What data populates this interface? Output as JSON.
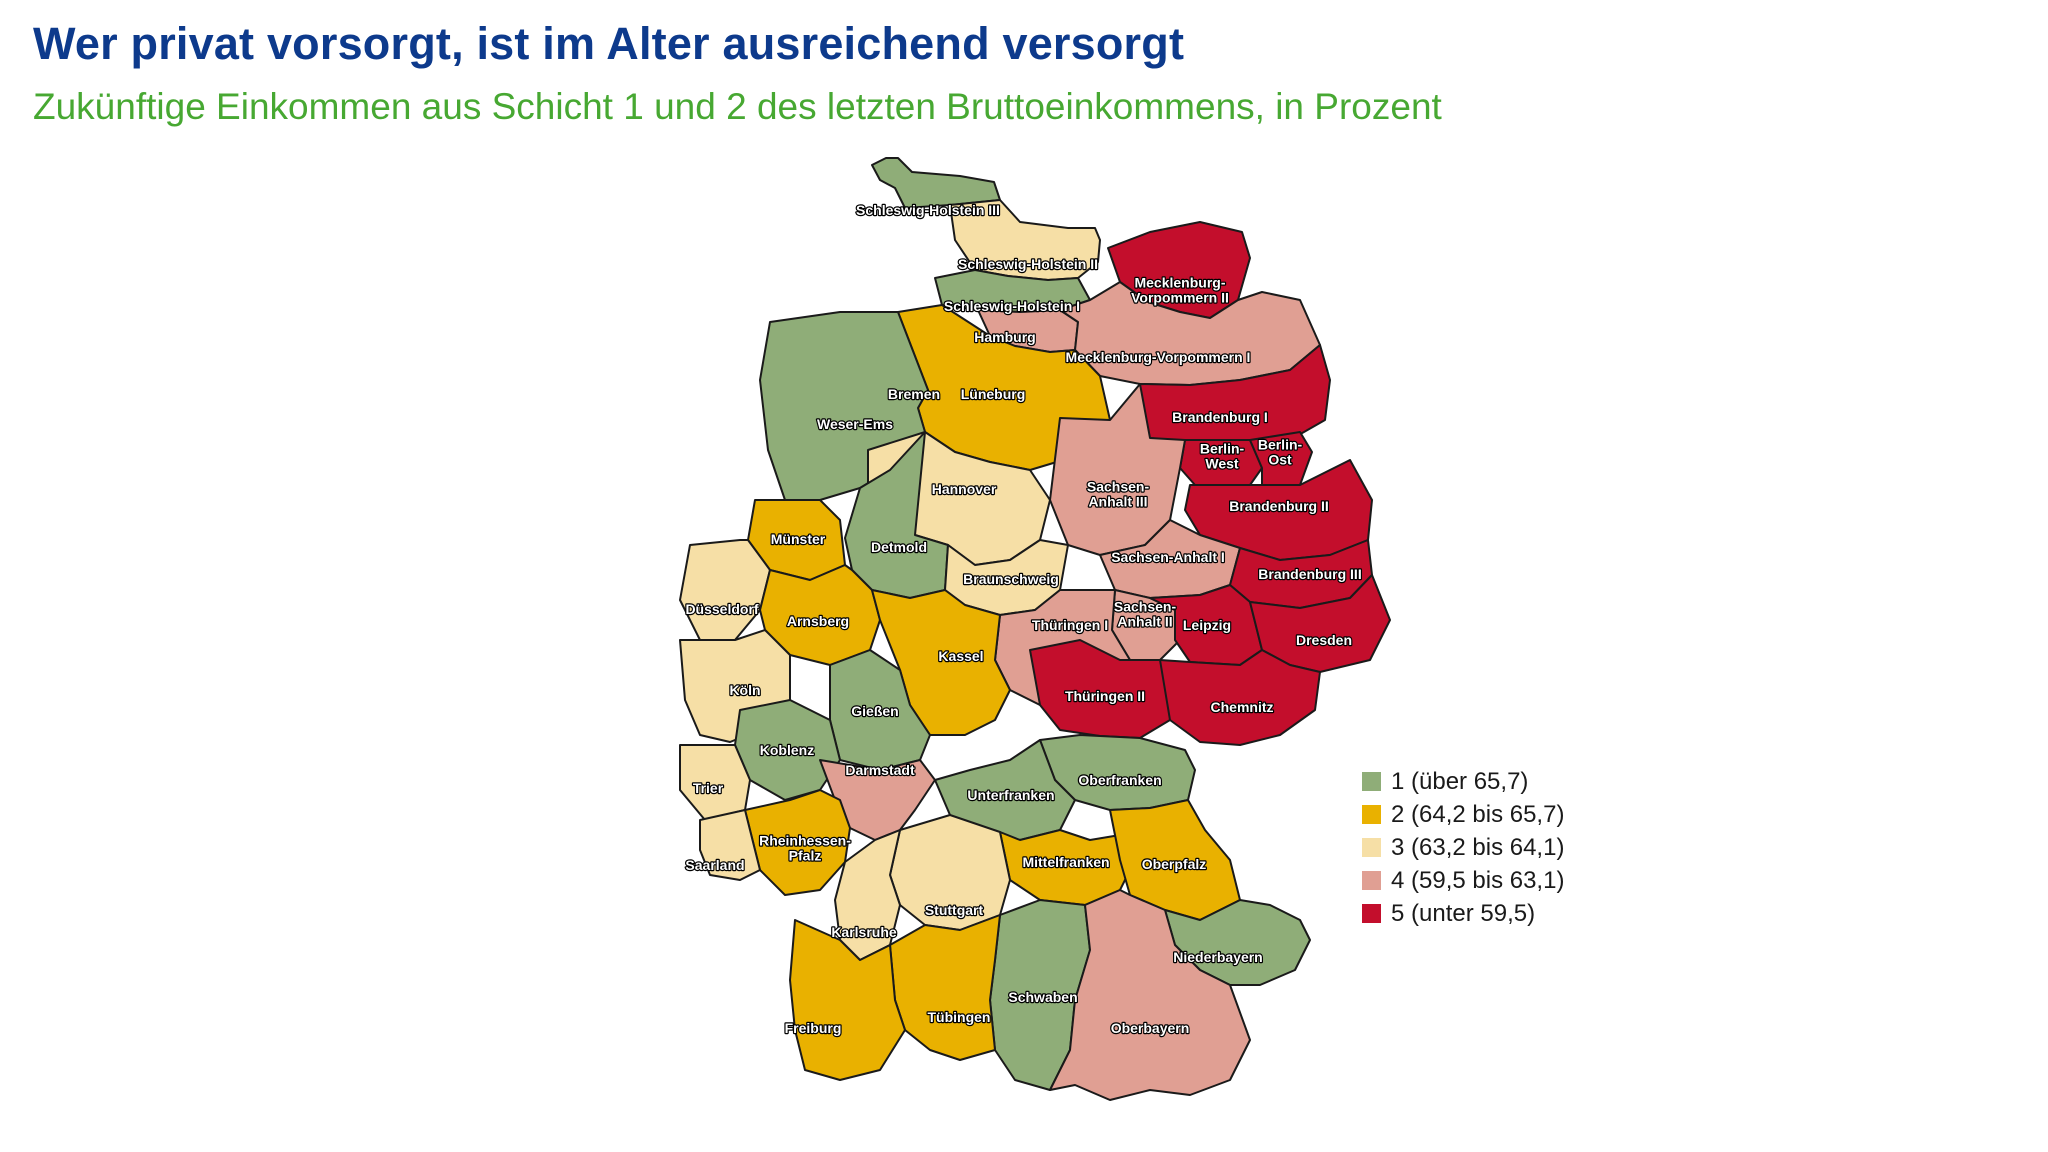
{
  "title": "Wer privat vorsorgt, ist im Alter ausreichend versorgt",
  "subtitle": "Zukünftige Einkommen aus Schicht 1 und 2 des letzten Bruttoeinkommens, in Prozent",
  "legend": [
    {
      "label": "1 (über 65,7)",
      "color": "#8fad78"
    },
    {
      "label": "2 (64,2 bis 65,7)",
      "color": "#e9b100"
    },
    {
      "label": "3 (63,2 bis 64,1)",
      "color": "#f6dfa6"
    },
    {
      "label": "4 (59,5 bis 63,1)",
      "color": "#e09f93"
    },
    {
      "label": "5 (unter 59,5)",
      "color": "#c30e2c"
    }
  ],
  "regions": [
    {
      "lines": [
        "Schleswig-Holstein III"
      ],
      "class": 1
    },
    {
      "lines": [
        "Schleswig-Holstein II"
      ],
      "class": 3
    },
    {
      "lines": [
        "Schleswig-Holstein I"
      ],
      "class": 1
    },
    {
      "lines": [
        "Hamburg"
      ],
      "class": 4
    },
    {
      "lines": [
        "Mecklenburg-",
        "Vorpommern II"
      ],
      "class": 5
    },
    {
      "lines": [
        "Mecklenburg-Vorpommern I"
      ],
      "class": 4
    },
    {
      "lines": [
        "Bremen"
      ],
      "class": 4
    },
    {
      "lines": [
        "Lüneburg"
      ],
      "class": 2
    },
    {
      "lines": [
        "Weser-Ems"
      ],
      "class": 1
    },
    {
      "lines": [
        "Brandenburg I"
      ],
      "class": 5
    },
    {
      "lines": [
        "Berlin-",
        "West"
      ],
      "class": 5
    },
    {
      "lines": [
        "Berlin-",
        "Ost"
      ],
      "class": 5
    },
    {
      "lines": [
        "Hannover"
      ],
      "class": 3
    },
    {
      "lines": [
        "Sachsen-",
        "Anhalt III"
      ],
      "class": 4
    },
    {
      "lines": [
        "Brandenburg II"
      ],
      "class": 5
    },
    {
      "lines": [
        "Münster"
      ],
      "class": 2
    },
    {
      "lines": [
        "Detmold"
      ],
      "class": 1
    },
    {
      "lines": [
        "Sachsen-Anhalt I"
      ],
      "class": 4
    },
    {
      "lines": [
        "Braunschweig"
      ],
      "class": 3
    },
    {
      "lines": [
        "Brandenburg III"
      ],
      "class": 5
    },
    {
      "lines": [
        "Düsseldorf"
      ],
      "class": 3
    },
    {
      "lines": [
        "Sachsen-",
        "Anhalt II"
      ],
      "class": 4
    },
    {
      "lines": [
        "Arnsberg"
      ],
      "class": 2
    },
    {
      "lines": [
        "Thüringen I"
      ],
      "class": 4
    },
    {
      "lines": [
        "Leipzig"
      ],
      "class": 5
    },
    {
      "lines": [
        "Dresden"
      ],
      "class": 5
    },
    {
      "lines": [
        "Kassel"
      ],
      "class": 2
    },
    {
      "lines": [
        "Köln"
      ],
      "class": 3
    },
    {
      "lines": [
        "Thüringen II"
      ],
      "class": 5
    },
    {
      "lines": [
        "Chemnitz"
      ],
      "class": 5
    },
    {
      "lines": [
        "Gießen"
      ],
      "class": 1
    },
    {
      "lines": [
        "Koblenz"
      ],
      "class": 1
    },
    {
      "lines": [
        "Darmstadt"
      ],
      "class": 4
    },
    {
      "lines": [
        "Oberfranken"
      ],
      "class": 1
    },
    {
      "lines": [
        "Trier"
      ],
      "class": 3
    },
    {
      "lines": [
        "Unterfranken"
      ],
      "class": 1
    },
    {
      "lines": [
        "Rheinhessen-",
        "Pfalz"
      ],
      "class": 2
    },
    {
      "lines": [
        "Saarland"
      ],
      "class": 3
    },
    {
      "lines": [
        "Mittelfranken"
      ],
      "class": 2
    },
    {
      "lines": [
        "Oberpfalz"
      ],
      "class": 2
    },
    {
      "lines": [
        "Stuttgart"
      ],
      "class": 3
    },
    {
      "lines": [
        "Karlsruhe"
      ],
      "class": 3
    },
    {
      "lines": [
        "Niederbayern"
      ],
      "class": 1
    },
    {
      "lines": [
        "Schwaben"
      ],
      "class": 1
    },
    {
      "lines": [
        "Tübingen"
      ],
      "class": 2
    },
    {
      "lines": [
        "Freiburg"
      ],
      "class": 2
    },
    {
      "lines": [
        "Oberbayern"
      ],
      "class": 4
    }
  ]
}
